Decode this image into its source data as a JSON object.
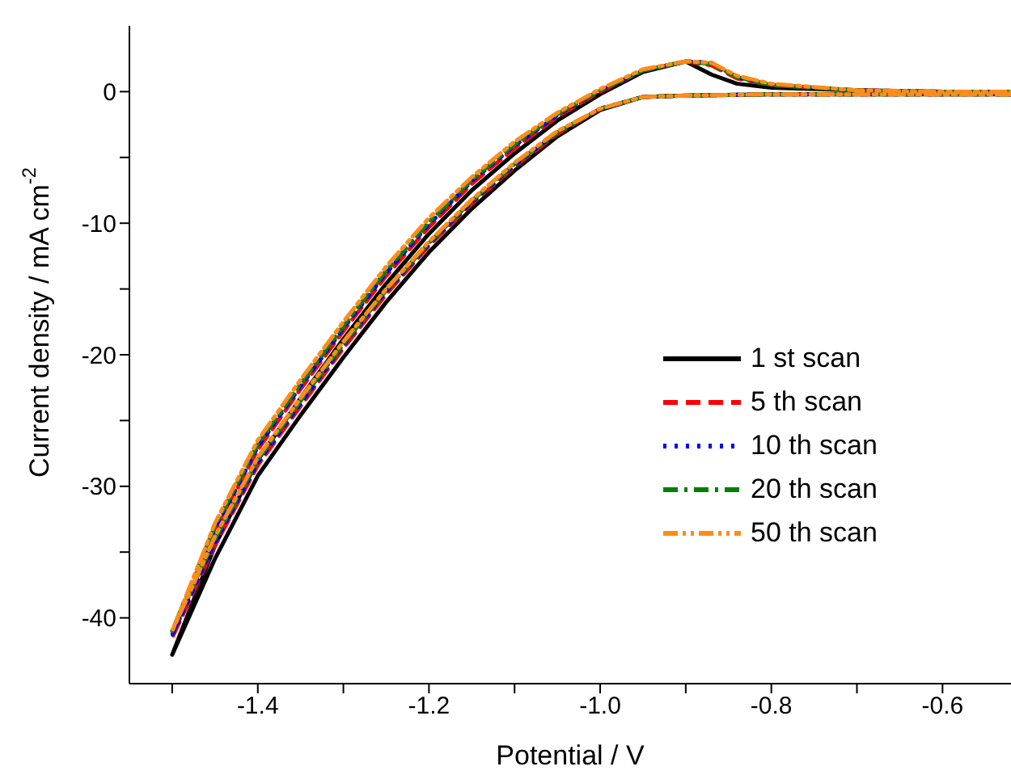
{
  "chart_data": {
    "type": "line",
    "xlabel": "Potential / V",
    "ylabel": "Current density / mA cm$^{-2}$",
    "x": [
      -0.52,
      -0.6,
      -0.7,
      -0.8,
      -0.9,
      -0.95,
      -1.0,
      -1.05,
      -1.1,
      -1.15,
      -1.2,
      -1.25,
      -1.3,
      -1.35,
      -1.4,
      -1.45,
      -1.5,
      -1.45,
      -1.4,
      -1.35,
      -1.3,
      -1.25,
      -1.2,
      -1.15,
      -1.1,
      -1.05,
      -1.0,
      -0.95,
      -0.9,
      -0.87,
      -0.84,
      -0.8,
      -0.7,
      -0.6,
      -0.52
    ],
    "series": [
      {
        "name": "1 st scan",
        "color": "#000000",
        "line_style": "solid",
        "values": [
          -0.2,
          -0.2,
          -0.2,
          -0.2,
          -0.3,
          -0.4,
          -1.4,
          -3.4,
          -6.0,
          -8.9,
          -12.2,
          -16.0,
          -20.2,
          -24.6,
          -29.2,
          -35.5,
          -42.8,
          -34.5,
          -28.0,
          -23.3,
          -18.8,
          -14.6,
          -10.8,
          -7.5,
          -4.7,
          -2.2,
          -0.2,
          1.5,
          2.3,
          1.3,
          0.6,
          0.3,
          0.1,
          0,
          0
        ]
      },
      {
        "name": "5 th scan",
        "color": "#ff0000",
        "line_style": "dashed",
        "values": [
          -0.2,
          -0.2,
          -0.2,
          -0.2,
          -0.3,
          -0.4,
          -1.3,
          -3.2,
          -5.7,
          -8.5,
          -11.7,
          -15.4,
          -19.5,
          -23.9,
          -28.4,
          -34.5,
          -41.5,
          -33.5,
          -27.2,
          -22.6,
          -18.2,
          -14.0,
          -10.3,
          -7.0,
          -4.3,
          -1.9,
          0.0,
          1.6,
          2.3,
          2.0,
          1.0,
          0.5,
          0.1,
          0,
          0
        ]
      },
      {
        "name": "10 th scan",
        "color": "#0000ff",
        "line_style": "dotted",
        "values": [
          -0.2,
          -0.2,
          -0.2,
          -0.2,
          -0.3,
          -0.4,
          -1.3,
          -3.1,
          -5.6,
          -8.4,
          -11.6,
          -15.2,
          -19.3,
          -23.7,
          -28.2,
          -34.3,
          -41.3,
          -33.3,
          -27.0,
          -22.4,
          -18.0,
          -13.8,
          -10.1,
          -6.8,
          -4.1,
          -1.8,
          0.1,
          1.6,
          2.3,
          2.2,
          1.1,
          0.5,
          0.1,
          0,
          0
        ]
      },
      {
        "name": "20 th scan",
        "color": "#008000",
        "line_style": "dashdot",
        "values": [
          -0.2,
          -0.2,
          -0.2,
          -0.2,
          -0.3,
          -0.4,
          -1.3,
          -3.1,
          -5.5,
          -8.3,
          -11.5,
          -15.1,
          -19.2,
          -23.5,
          -28.0,
          -34.0,
          -41.0,
          -33.0,
          -26.8,
          -22.2,
          -17.8,
          -13.6,
          -9.9,
          -6.7,
          -4.0,
          -1.7,
          0.1,
          1.6,
          2.3,
          2.1,
          1.1,
          0.5,
          0.1,
          0,
          0
        ]
      },
      {
        "name": "50 th scan",
        "color": "#ff8c1a",
        "line_style": "dashdotdot",
        "values": [
          -0.2,
          -0.2,
          -0.2,
          -0.2,
          -0.3,
          -0.4,
          -1.3,
          -3.0,
          -5.4,
          -8.2,
          -11.4,
          -15.0,
          -19.0,
          -23.3,
          -27.8,
          -33.8,
          -41.0,
          -32.8,
          -26.5,
          -21.9,
          -17.5,
          -13.3,
          -9.6,
          -6.5,
          -3.8,
          -1.6,
          0.2,
          1.7,
          2.3,
          2.2,
          1.2,
          0.6,
          0.1,
          0,
          0
        ]
      }
    ],
    "xlim": [
      -1.55,
      -0.52
    ],
    "xticks": [
      {
        "value": -1.5,
        "label": null
      },
      -1.4,
      {
        "value": -1.3,
        "label": null
      },
      -1.2,
      {
        "value": -1.1,
        "label": null
      },
      {
        "value": -1.0,
        "label": "-1.0"
      },
      {
        "value": -0.9,
        "label": null
      },
      -0.8,
      {
        "value": -0.7,
        "label": null
      },
      -0.6
    ],
    "ylim": [
      -45,
      5
    ],
    "yticks": [
      -40,
      {
        "value": -35,
        "label": null
      },
      -30,
      {
        "value": -25,
        "label": null
      },
      -20,
      {
        "value": -15,
        "label": null
      },
      -10,
      {
        "value": -5,
        "label": null
      },
      0
    ],
    "legend": "right",
    "grid": false,
    "marker": "none"
  }
}
